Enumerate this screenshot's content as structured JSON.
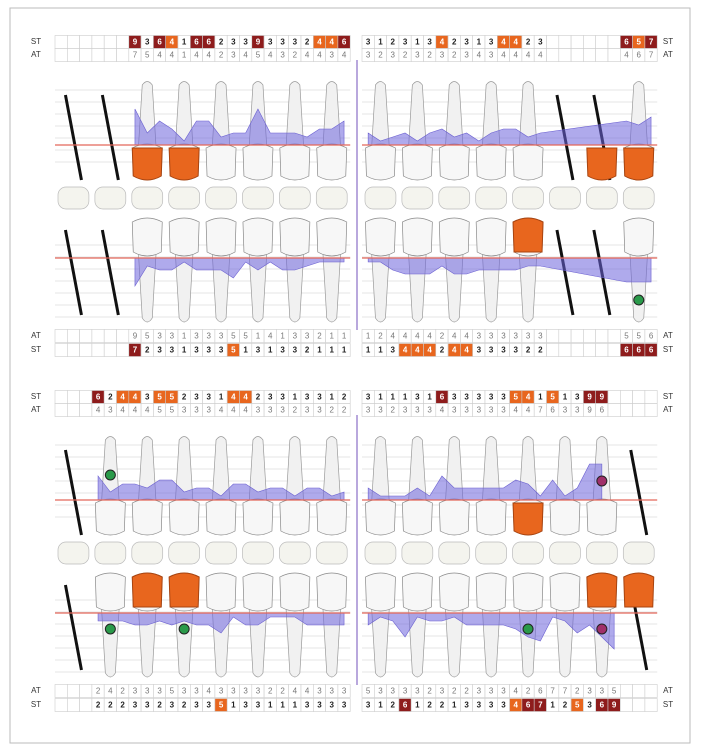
{
  "labels": {
    "st": "ST",
    "at": "AT"
  },
  "sections": [
    {
      "top_st": {
        "left": [
          null,
          null,
          null,
          null,
          null,
          null,
          9,
          3,
          6,
          4,
          1,
          6,
          6,
          2,
          3,
          3,
          9,
          3,
          3,
          3,
          2,
          4,
          4,
          6
        ],
        "right": [
          3,
          1,
          2,
          3,
          1,
          3,
          4,
          2,
          3,
          1,
          3,
          4,
          4,
          2,
          3,
          null,
          null,
          null,
          null,
          null,
          null,
          6,
          5,
          7
        ]
      },
      "top_at": {
        "left": [
          null,
          null,
          null,
          null,
          null,
          null,
          7,
          5,
          4,
          4,
          1,
          4,
          4,
          2,
          3,
          4,
          5,
          4,
          3,
          2,
          4,
          4,
          3,
          4
        ],
        "right": [
          3,
          2,
          3,
          2,
          3,
          2,
          3,
          2,
          3,
          4,
          3,
          4,
          4,
          4,
          4,
          null,
          null,
          null,
          null,
          null,
          null,
          4,
          6,
          7
        ]
      },
      "bot_at": {
        "left": [
          null,
          null,
          null,
          null,
          null,
          null,
          9,
          5,
          3,
          3,
          1,
          3,
          3,
          3,
          5,
          5,
          1,
          4,
          1,
          3,
          3,
          2,
          1,
          1
        ],
        "right": [
          1,
          2,
          4,
          4,
          4,
          4,
          2,
          4,
          4,
          3,
          3,
          3,
          3,
          3,
          3,
          null,
          null,
          null,
          null,
          null,
          null,
          5,
          5,
          6
        ]
      },
      "bot_st": {
        "left": [
          null,
          null,
          null,
          null,
          null,
          null,
          7,
          2,
          3,
          3,
          1,
          3,
          3,
          3,
          5,
          1,
          3,
          1,
          3,
          3,
          2,
          1,
          1,
          1
        ],
        "right": [
          1,
          1,
          3,
          4,
          4,
          4,
          2,
          4,
          4,
          3,
          3,
          3,
          3,
          2,
          2,
          null,
          null,
          null,
          null,
          null,
          null,
          6,
          6,
          6
        ]
      }
    },
    {
      "top_st": {
        "left": [
          null,
          null,
          null,
          6,
          2,
          4,
          4,
          3,
          5,
          5,
          2,
          3,
          3,
          1,
          4,
          4,
          2,
          3,
          3,
          1,
          3,
          3,
          1,
          2
        ],
        "right": [
          3,
          1,
          1,
          1,
          3,
          1,
          6,
          3,
          3,
          3,
          3,
          3,
          5,
          4,
          1,
          5,
          1,
          3,
          9,
          9,
          null,
          null,
          null,
          null
        ]
      },
      "top_at": {
        "left": [
          null,
          null,
          null,
          4,
          3,
          4,
          4,
          4,
          5,
          5,
          3,
          3,
          3,
          4,
          4,
          4,
          3,
          3,
          3,
          2,
          3,
          3,
          2,
          2
        ],
        "right": [
          3,
          3,
          2,
          3,
          3,
          3,
          4,
          3,
          3,
          3,
          3,
          3,
          4,
          4,
          7,
          6,
          3,
          3,
          9,
          6,
          null,
          null,
          null,
          null
        ]
      },
      "bot_at": {
        "left": [
          null,
          null,
          null,
          2,
          4,
          2,
          3,
          3,
          3,
          5,
          3,
          3,
          4,
          3,
          3,
          3,
          3,
          2,
          2,
          4,
          4,
          3,
          3,
          3
        ],
        "right": [
          5,
          3,
          3,
          3,
          3,
          2,
          3,
          2,
          2,
          3,
          3,
          3,
          4,
          2,
          6,
          7,
          7,
          2,
          3,
          3,
          5,
          null,
          null,
          null
        ]
      },
      "bot_st": {
        "left": [
          null,
          null,
          null,
          2,
          2,
          2,
          3,
          3,
          2,
          3,
          2,
          3,
          3,
          5,
          1,
          3,
          3,
          1,
          1,
          1,
          3,
          3,
          3,
          3
        ],
        "right": [
          3,
          1,
          2,
          6,
          1,
          2,
          2,
          1,
          3,
          3,
          3,
          3,
          4,
          6,
          7,
          1,
          2,
          5,
          3,
          6,
          9,
          null,
          null,
          null
        ]
      }
    }
  ]
}
